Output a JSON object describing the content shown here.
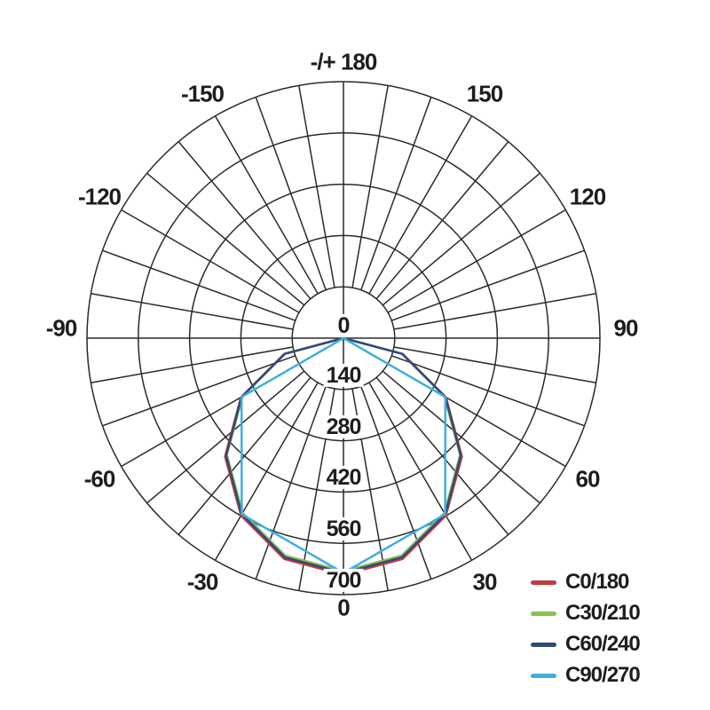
{
  "background_color": "#ffffff",
  "grid_color": "#2a2a2a",
  "text_color": "#1d1d1d",
  "chart_data": {
    "type": "line",
    "subtype": "polar photometric luminous-intensity distribution (0° at nadir/bottom, ±180° at top)",
    "angle_unit": "degrees",
    "angle_tick_labels": [
      {
        "angle": 180,
        "label": "-/+ 180"
      },
      {
        "angle": 150,
        "label": "150"
      },
      {
        "angle": 120,
        "label": "120"
      },
      {
        "angle": 90,
        "label": "90"
      },
      {
        "angle": 60,
        "label": "60"
      },
      {
        "angle": 30,
        "label": "30"
      },
      {
        "angle": 0,
        "label": "0"
      },
      {
        "angle": -30,
        "label": "-30"
      },
      {
        "angle": -60,
        "label": "-60"
      },
      {
        "angle": -90,
        "label": "-90"
      },
      {
        "angle": -120,
        "label": "-120"
      },
      {
        "angle": -150,
        "label": "-150"
      }
    ],
    "angle_grid_step_deg": 10,
    "radial_tick_labels": [
      "0",
      "140",
      "280",
      "420",
      "560",
      "700"
    ],
    "radial_ticks": [
      0,
      140,
      280,
      420,
      560,
      700
    ],
    "radial_max": 700,
    "grid_rings": 5,
    "legend_position": "bottom-right",
    "series": [
      {
        "name": "C0/180",
        "color": "#c23b3e",
        "angles_deg": [
          0,
          15,
          30,
          45,
          60,
          75,
          90
        ],
        "values": [
          646,
          624,
          559,
          457,
          323,
          167,
          0
        ],
        "symmetric": true
      },
      {
        "name": "C30/210",
        "color": "#8cc152",
        "angles_deg": [
          0,
          15,
          30,
          45,
          60,
          75,
          90
        ],
        "values": [
          636,
          614,
          551,
          450,
          318,
          165,
          0
        ],
        "symmetric": true
      },
      {
        "name": "C60/240",
        "color": "#2e4a7d",
        "angles_deg": [
          0,
          15,
          30,
          45,
          60,
          75,
          90
        ],
        "values": [
          641,
          619,
          555,
          453,
          321,
          166,
          0
        ],
        "symmetric": true
      },
      {
        "name": "C90/270",
        "color": "#3fade3",
        "angles_deg": [
          0,
          30,
          60,
          90
        ],
        "values": [
          641,
          555,
          321,
          0
        ],
        "symmetric": true
      }
    ]
  },
  "legend": {
    "items": [
      {
        "label": "C0/180",
        "color": "#c23b3e"
      },
      {
        "label": "C30/210",
        "color": "#8cc152"
      },
      {
        "label": "C60/240",
        "color": "#2e4a7d"
      },
      {
        "label": "C90/270",
        "color": "#3fade3"
      }
    ]
  }
}
